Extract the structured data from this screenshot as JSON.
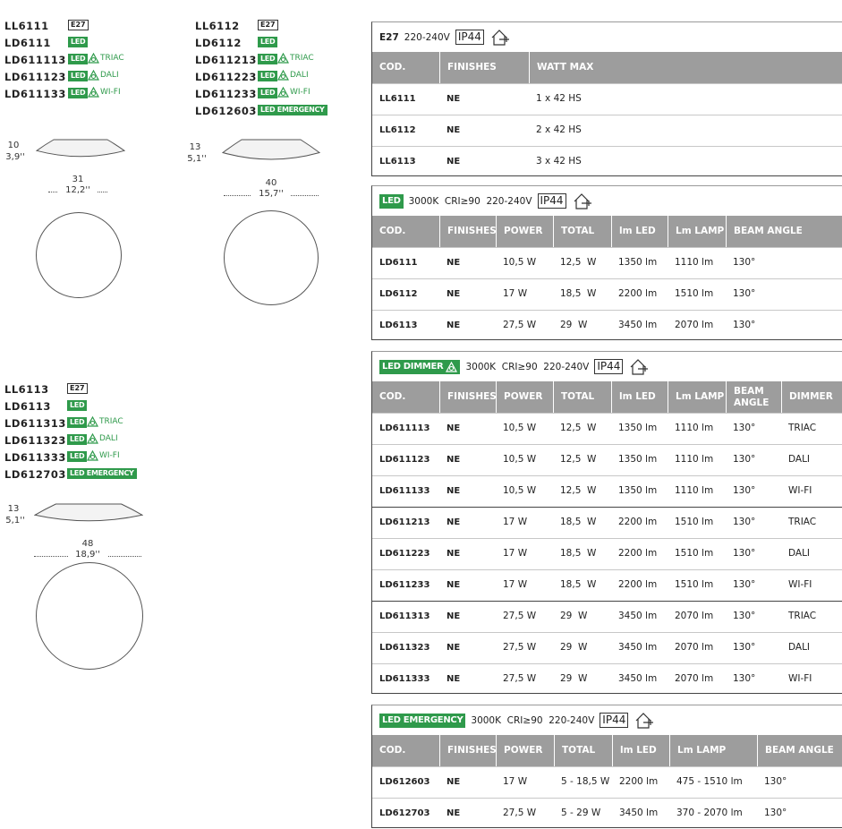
{
  "products": [
    {
      "codes": [
        {
          "code": "LL6111",
          "badge": "E27"
        },
        {
          "code": "LD6111",
          "badge": "LED"
        },
        {
          "code": "LD611113",
          "badge": "LED",
          "dimmer": "TRIAC"
        },
        {
          "code": "LD611123",
          "badge": "LED",
          "dimmer": "DALI"
        },
        {
          "code": "LD611133",
          "badge": "LED",
          "dimmer": "WI-FI"
        }
      ],
      "height_cm": "10",
      "height_in": "3,9''",
      "width_cm": "31",
      "width_in": "12,2''"
    },
    {
      "codes": [
        {
          "code": "LL6112",
          "badge": "E27"
        },
        {
          "code": "LD6112",
          "badge": "LED"
        },
        {
          "code": "LD611213",
          "badge": "LED",
          "dimmer": "TRIAC"
        },
        {
          "code": "LD611223",
          "badge": "LED",
          "dimmer": "DALI"
        },
        {
          "code": "LD611233",
          "badge": "LED",
          "dimmer": "WI-FI"
        },
        {
          "code": "LD612603",
          "badge": "LED EMERGENCY"
        }
      ],
      "height_cm": "13",
      "height_in": "5,1''",
      "width_cm": "40",
      "width_in": "15,7''"
    },
    {
      "codes": [
        {
          "code": "LL6113",
          "badge": "E27"
        },
        {
          "code": "LD6113",
          "badge": "LED"
        },
        {
          "code": "LD611313",
          "badge": "LED",
          "dimmer": "TRIAC"
        },
        {
          "code": "LD611323",
          "badge": "LED",
          "dimmer": "DALI"
        },
        {
          "code": "LD611333",
          "badge": "LED",
          "dimmer": "WI-FI"
        },
        {
          "code": "LD612703",
          "badge": "LED EMERGENCY"
        }
      ],
      "height_cm": "13",
      "height_in": "5,1''",
      "width_cm": "48",
      "width_in": "18,9''"
    }
  ],
  "tables": [
    {
      "label": "E27",
      "specs": "220-240V",
      "ip": "IP44",
      "columns": [
        "COD.",
        "FINISHES",
        "WATT MAX"
      ],
      "rows": [
        [
          "LL6111",
          "NE",
          "1 x 42 HS"
        ],
        [
          "LL6112",
          "NE",
          "2 x 42 HS"
        ],
        [
          "LL6113",
          "NE",
          "3 x 42 HS"
        ]
      ]
    },
    {
      "badge": "LED",
      "specs": "3000K  CRI≥90  220-240V",
      "ip": "IP44",
      "columns": [
        "COD.",
        "FINISHES",
        "POWER",
        "TOTAL",
        "lm LED",
        "Lm LAMP",
        "BEAM ANGLE"
      ],
      "rows": [
        [
          "LD6111",
          "NE",
          "10,5 W",
          "12,5  W",
          "1350 lm",
          "1110 lm",
          "130°"
        ],
        [
          "LD6112",
          "NE",
          "17 W",
          "18,5  W",
          "2200 lm",
          "1510 lm",
          "130°"
        ],
        [
          "LD6113",
          "NE",
          "27,5 W",
          "29  W",
          "3450 lm",
          "2070 lm",
          "130°"
        ]
      ]
    },
    {
      "badge": "LED DIMMER",
      "specs": "3000K  CRI≥90  220-240V",
      "ip": "IP44",
      "columns": [
        "COD.",
        "FINISHES",
        "POWER",
        "TOTAL",
        "lm LED",
        "Lm LAMP",
        "BEAM ANGLE",
        "DIMMER"
      ],
      "rows": [
        [
          "LD611113",
          "NE",
          "10,5 W",
          "12,5  W",
          "1350 lm",
          "1110 lm",
          "130°",
          "TRIAC"
        ],
        [
          "LD611123",
          "NE",
          "10,5 W",
          "12,5  W",
          "1350 lm",
          "1110 lm",
          "130°",
          "DALI"
        ],
        [
          "LD611133",
          "NE",
          "10,5 W",
          "12,5  W",
          "1350 lm",
          "1110 lm",
          "130°",
          "WI-FI"
        ],
        [
          "LD611213",
          "NE",
          "17 W",
          "18,5  W",
          "2200 lm",
          "1510 lm",
          "130°",
          "TRIAC"
        ],
        [
          "LD611223",
          "NE",
          "17 W",
          "18,5  W",
          "2200 lm",
          "1510 lm",
          "130°",
          "DALI"
        ],
        [
          "LD611233",
          "NE",
          "17 W",
          "18,5  W",
          "2200 lm",
          "1510 lm",
          "130°",
          "WI-FI"
        ],
        [
          "LD611313",
          "NE",
          "27,5 W",
          "29  W",
          "3450 lm",
          "2070 lm",
          "130°",
          "TRIAC"
        ],
        [
          "LD611323",
          "NE",
          "27,5 W",
          "29  W",
          "3450 lm",
          "2070 lm",
          "130°",
          "DALI"
        ],
        [
          "LD611333",
          "NE",
          "27,5 W",
          "29  W",
          "3450 lm",
          "2070 lm",
          "130°",
          "WI-FI"
        ]
      ]
    },
    {
      "badge": "LED EMERGENCY",
      "specs": "3000K  CRI≥90  220-240V",
      "ip": "IP44",
      "columns": [
        "COD.",
        "FINISHES",
        "POWER",
        "TOTAL",
        "lm LED",
        "Lm LAMP",
        "BEAM ANGLE"
      ],
      "rows": [
        [
          "LD612603",
          "NE",
          "17 W",
          "5 - 18,5 W",
          "2200 lm",
          "475 - 1510 lm",
          "130°"
        ],
        [
          "LD612703",
          "NE",
          "27,5 W",
          "5 - 29 W",
          "3450 lm",
          "370 - 2070 lm",
          "130°"
        ]
      ]
    }
  ]
}
